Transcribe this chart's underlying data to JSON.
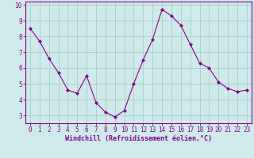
{
  "x": [
    0,
    1,
    2,
    3,
    4,
    5,
    6,
    7,
    8,
    9,
    10,
    11,
    12,
    13,
    14,
    15,
    16,
    17,
    18,
    19,
    20,
    21,
    22,
    23
  ],
  "y": [
    8.5,
    7.7,
    6.6,
    5.7,
    4.6,
    4.4,
    5.5,
    3.8,
    3.2,
    2.9,
    3.3,
    5.0,
    6.5,
    7.8,
    9.7,
    9.3,
    8.7,
    7.5,
    6.3,
    6.0,
    5.1,
    4.7,
    4.5,
    4.6
  ],
  "line_color": "#880088",
  "marker": "D",
  "marker_size": 2.0,
  "bg_color": "#ceeaea",
  "grid_color": "#aacece",
  "xlabel": "Windchill (Refroidissement éolien,°C)",
  "ylim": [
    2.5,
    10.2
  ],
  "xlim": [
    -0.5,
    23.5
  ],
  "yticks": [
    3,
    4,
    5,
    6,
    7,
    8,
    9,
    10
  ],
  "xticks": [
    0,
    1,
    2,
    3,
    4,
    5,
    6,
    7,
    8,
    9,
    10,
    11,
    12,
    13,
    14,
    15,
    16,
    17,
    18,
    19,
    20,
    21,
    22,
    23
  ],
  "tick_label_fontsize": 5.5,
  "xlabel_fontsize": 6.0,
  "line_width": 0.8,
  "spine_color": "#880088"
}
